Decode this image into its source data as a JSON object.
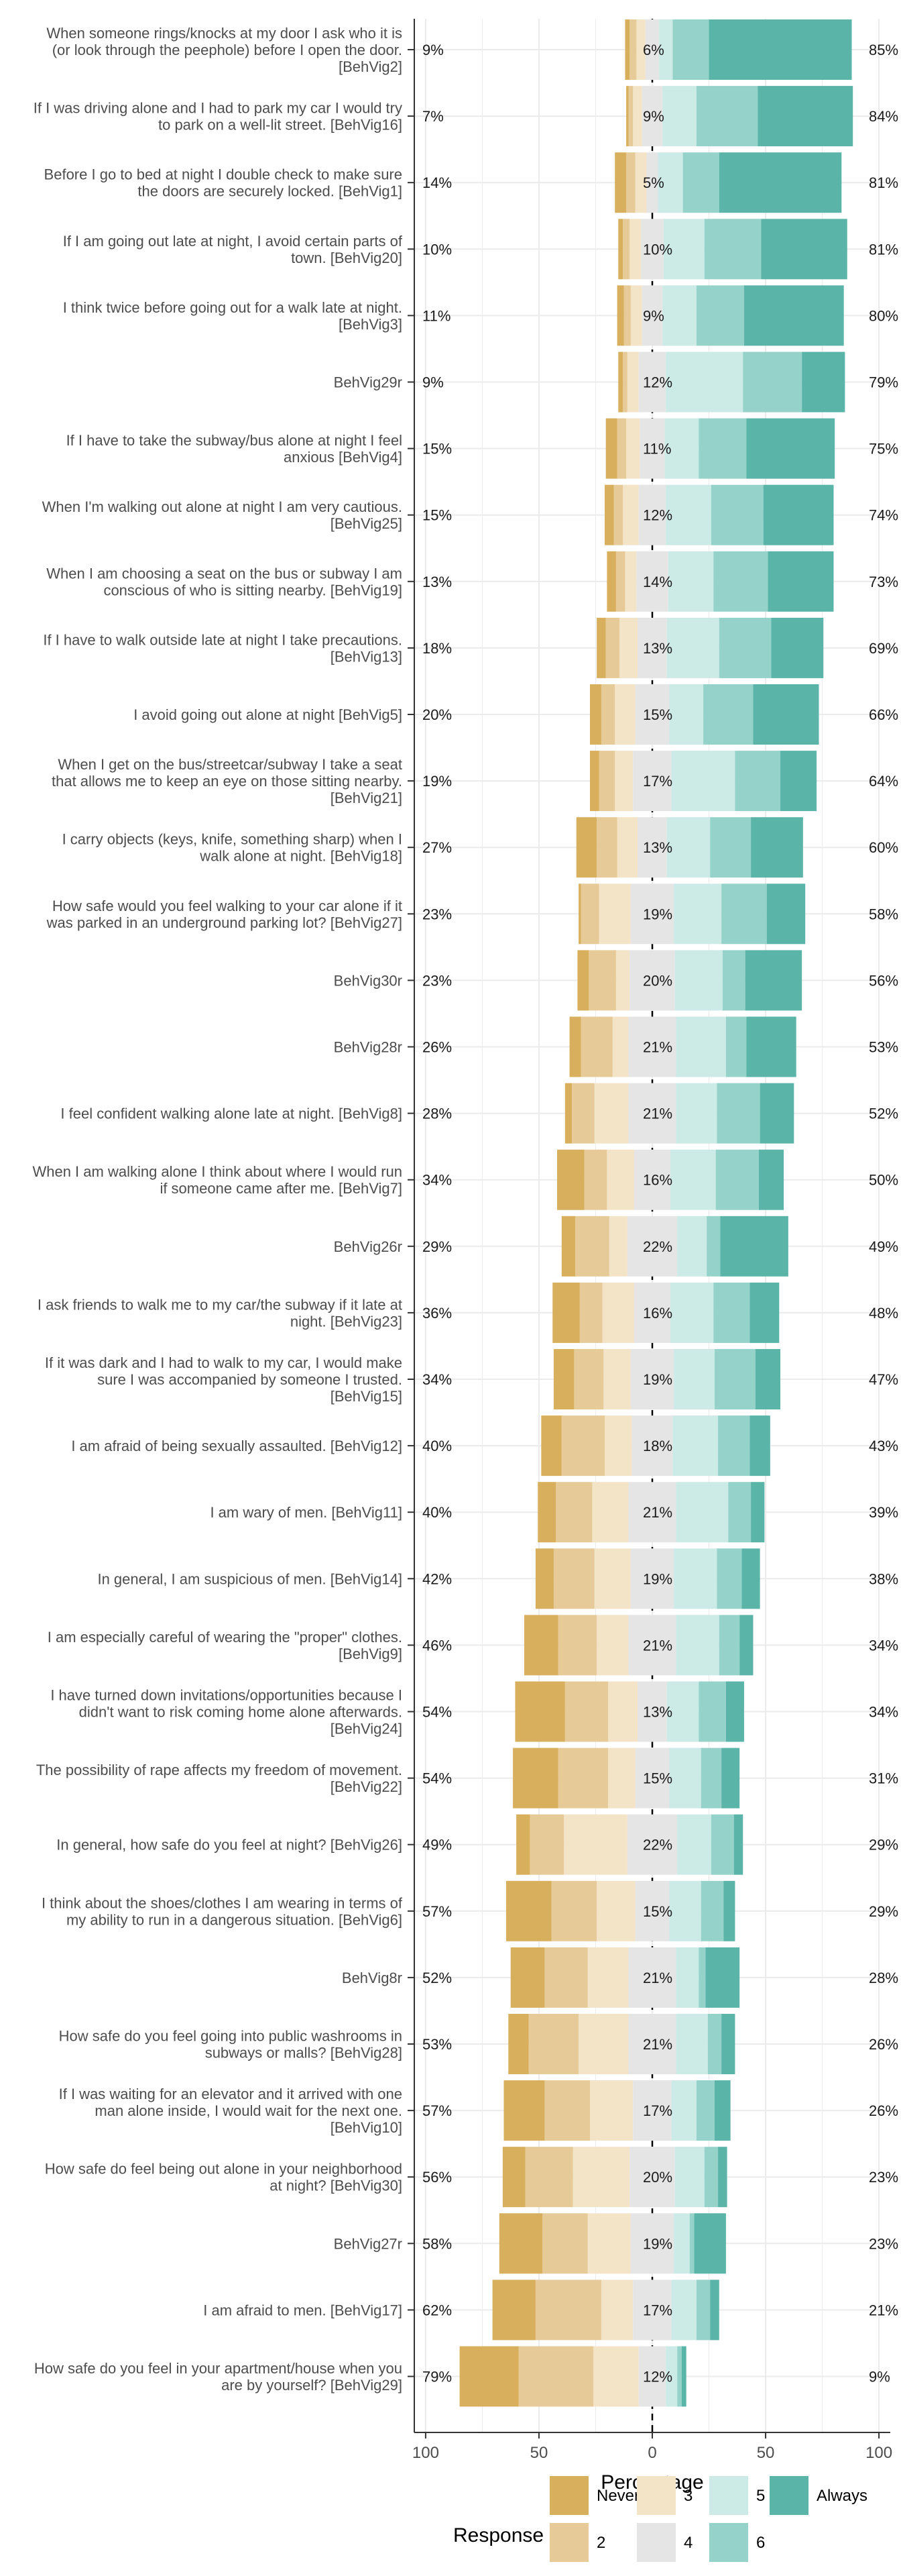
{
  "chart_data": {
    "type": "bar",
    "subtype": "diverging-stacked-likert",
    "xlabel": "Percentage",
    "ylabel": "",
    "xlim": [
      -105,
      105
    ],
    "x_ticks": [
      -100,
      -50,
      0,
      50,
      100
    ],
    "x_tick_labels": [
      "100",
      "50",
      "0",
      "50",
      "100"
    ],
    "grid": true,
    "legend": {
      "title": "Response",
      "position": "bottom",
      "levels": [
        "Never",
        "2",
        "3",
        "4",
        "5",
        "6",
        "Always"
      ],
      "colors": [
        "#D8AF5D",
        "#E6CB98",
        "#F3E3C7",
        "#E5E5E5",
        "#CCEAE6",
        "#95D2CA",
        "#5BB4A8"
      ]
    },
    "items": [
      {
        "label": "When someone rings/knocks at my door I ask who it is (or look through the peephole) before I open the door. [BehVig2]",
        "left": "9%",
        "neutral": "6%",
        "right": "85%",
        "values": [
          2,
          3,
          4,
          6,
          6,
          16,
          63
        ]
      },
      {
        "label": "If I was driving alone and I had to park my car I would try to park on a well-lit street. [BehVig16]",
        "left": "7%",
        "neutral": "9%",
        "right": "84%",
        "values": [
          1,
          2,
          4,
          9,
          15,
          27,
          42
        ]
      },
      {
        "label": "Before I go to bed at night I double check to make sure the doors are securely locked. [BehVig1]",
        "left": "14%",
        "neutral": "5%",
        "right": "81%",
        "values": [
          5,
          4,
          5,
          5,
          11,
          16,
          54
        ]
      },
      {
        "label": "If I am going out late at night, I avoid certain parts of town. [BehVig20]",
        "left": "10%",
        "neutral": "10%",
        "right": "81%",
        "values": [
          2,
          3,
          5,
          10,
          18,
          25,
          38
        ]
      },
      {
        "label": "I think twice before going out for a walk late at night. [BehVig3]",
        "left": "11%",
        "neutral": "9%",
        "right": "80%",
        "values": [
          3,
          3,
          5,
          9,
          15,
          21,
          44
        ]
      },
      {
        "label": "BehVig29r",
        "left": "9%",
        "neutral": "12%",
        "right": "79%",
        "values": [
          2,
          2,
          5,
          12,
          34,
          26,
          19
        ]
      },
      {
        "label": "If I have to take the subway/bus alone at night I feel anxious [BehVig4]",
        "left": "15%",
        "neutral": "11%",
        "right": "75%",
        "values": [
          5,
          4,
          6,
          11,
          15,
          21,
          39
        ]
      },
      {
        "label": "When I'm walking out alone at night I am very cautious. [BehVig25]",
        "left": "15%",
        "neutral": "12%",
        "right": "74%",
        "values": [
          4,
          4,
          7,
          12,
          20,
          23,
          31
        ]
      },
      {
        "label": "When I am choosing a seat on the bus or subway I am conscious of who is sitting nearby. [BehVig19]",
        "left": "13%",
        "neutral": "14%",
        "right": "73%",
        "values": [
          4,
          4,
          5,
          14,
          20,
          24,
          29
        ]
      },
      {
        "label": "If I have to walk outside late at night I take precautions. [BehVig13]",
        "left": "18%",
        "neutral": "13%",
        "right": "69%",
        "values": [
          4,
          6,
          8,
          13,
          23,
          23,
          23
        ]
      },
      {
        "label": "I avoid going out alone at night [BehVig5]",
        "left": "20%",
        "neutral": "15%",
        "right": "66%",
        "values": [
          5,
          6,
          9,
          15,
          15,
          22,
          29
        ]
      },
      {
        "label": "When I get on the bus/streetcar/subway I take a seat that allows me to keep an eye on those sitting nearby. [BehVig21]",
        "left": "19%",
        "neutral": "17%",
        "right": "64%",
        "values": [
          4,
          7,
          8,
          17,
          28,
          20,
          16
        ]
      },
      {
        "label": "I carry objects (keys, knife, something sharp) when I walk alone at night. [BehVig18]",
        "left": "27%",
        "neutral": "13%",
        "right": "60%",
        "values": [
          9,
          9,
          9,
          13,
          19,
          18,
          23
        ]
      },
      {
        "label": "How safe would you feel walking to your car alone if it was parked in an underground parking lot? [BehVig27]",
        "left": "23%",
        "neutral": "19%",
        "right": "58%",
        "values": [
          1,
          8,
          14,
          19,
          21,
          20,
          17
        ]
      },
      {
        "label": "BehVig30r",
        "left": "23%",
        "neutral": "20%",
        "right": "56%",
        "values": [
          5,
          12,
          6,
          20,
          21,
          10,
          25
        ]
      },
      {
        "label": "BehVig28r",
        "left": "26%",
        "neutral": "21%",
        "right": "53%",
        "values": [
          5,
          14,
          7,
          21,
          22,
          9,
          22
        ]
      },
      {
        "label": "I feel confident walking alone late at night. [BehVig8]",
        "left": "28%",
        "neutral": "21%",
        "right": "52%",
        "values": [
          3,
          10,
          15,
          21,
          18,
          19,
          15
        ]
      },
      {
        "label": "When I am walking alone I think about where I would run if someone came after me. [BehVig7]",
        "left": "34%",
        "neutral": "16%",
        "right": "50%",
        "values": [
          12,
          10,
          12,
          16,
          20,
          19,
          11
        ]
      },
      {
        "label": "BehVig26r",
        "left": "29%",
        "neutral": "22%",
        "right": "49%",
        "values": [
          6,
          15,
          8,
          22,
          13,
          6,
          30
        ]
      },
      {
        "label": "I ask friends to walk me to my car/the subway if it late at night. [BehVig23]",
        "left": "36%",
        "neutral": "16%",
        "right": "48%",
        "values": [
          12,
          10,
          14,
          16,
          19,
          16,
          13
        ]
      },
      {
        "label": "If it was dark and I had to walk to my car, I would make sure I was accompanied by someone I trusted. [BehVig15]",
        "left": "34%",
        "neutral": "19%",
        "right": "47%",
        "values": [
          9,
          13,
          12,
          19,
          18,
          18,
          11
        ]
      },
      {
        "label": "I am afraid of being sexually assaulted. [BehVig12]",
        "left": "40%",
        "neutral": "18%",
        "right": "43%",
        "values": [
          9,
          19,
          12,
          18,
          20,
          14,
          9
        ]
      },
      {
        "label": "I am wary of men. [BehVig11]",
        "left": "40%",
        "neutral": "21%",
        "right": "39%",
        "values": [
          8,
          16,
          16,
          21,
          23,
          10,
          6
        ]
      },
      {
        "label": "In general, I am suspicious of men. [BehVig14]",
        "left": "42%",
        "neutral": "19%",
        "right": "38%",
        "values": [
          8,
          18,
          16,
          19,
          19,
          11,
          8
        ]
      },
      {
        "label": "I am especially careful of wearing the \"proper\" clothes. [BehVig9]",
        "left": "46%",
        "neutral": "21%",
        "right": "34%",
        "values": [
          15,
          17,
          14,
          21,
          19,
          9,
          6
        ]
      },
      {
        "label": "I have turned down invitations/opportunities because I didn't want to risk coming home alone afterwards. [BehVig24]",
        "left": "54%",
        "neutral": "13%",
        "right": "34%",
        "values": [
          22,
          19,
          13,
          13,
          14,
          12,
          8
        ]
      },
      {
        "label": "The possibility of rape affects my freedom of movement. [BehVig22]",
        "left": "54%",
        "neutral": "15%",
        "right": "31%",
        "values": [
          20,
          22,
          12,
          15,
          14,
          9,
          8
        ]
      },
      {
        "label": "In general, how safe do you feel at night? [BehVig26]",
        "left": "49%",
        "neutral": "22%",
        "right": "29%",
        "values": [
          6,
          15,
          28,
          22,
          15,
          10,
          4
        ]
      },
      {
        "label": "I think about the shoes/clothes I am wearing in terms of my ability to run in a dangerous situation. [BehVig6]",
        "left": "57%",
        "neutral": "15%",
        "right": "29%",
        "values": [
          20,
          20,
          17,
          15,
          14,
          10,
          5
        ]
      },
      {
        "label": "BehVig8r",
        "left": "52%",
        "neutral": "21%",
        "right": "28%",
        "values": [
          15,
          19,
          18,
          21,
          10,
          3,
          15
        ]
      },
      {
        "label": "How safe do you feel going into public washrooms in subways or malls? [BehVig28]",
        "left": "53%",
        "neutral": "21%",
        "right": "26%",
        "values": [
          9,
          22,
          22,
          21,
          14,
          6,
          6
        ]
      },
      {
        "label": "If I was waiting for an elevator and it arrived with one man alone inside, I would wait for the next one. [BehVig10]",
        "left": "57%",
        "neutral": "17%",
        "right": "26%",
        "values": [
          18,
          20,
          19,
          17,
          11,
          8,
          7
        ]
      },
      {
        "label": "How safe do feel being out alone in your neighborhood at night? [BehVig30]",
        "left": "56%",
        "neutral": "20%",
        "right": "23%",
        "values": [
          10,
          21,
          25,
          20,
          13,
          6,
          4
        ]
      },
      {
        "label": "BehVig27r",
        "left": "58%",
        "neutral": "19%",
        "right": "23%",
        "values": [
          19,
          20,
          19,
          19,
          7,
          2,
          14
        ]
      },
      {
        "label": "I am afraid to men. [BehVig17]",
        "left": "62%",
        "neutral": "17%",
        "right": "21%",
        "values": [
          19,
          29,
          14,
          17,
          11,
          6,
          4
        ]
      },
      {
        "label": "How safe do you feel in your apartment/house when you are by yourself? [BehVig29]",
        "left": "79%",
        "neutral": "12%",
        "right": "9%",
        "values": [
          26,
          33,
          20,
          12,
          5,
          2,
          2
        ]
      }
    ]
  }
}
